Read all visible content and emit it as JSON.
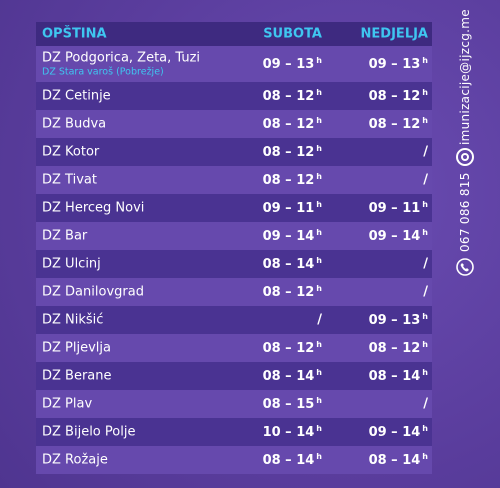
{
  "header": {
    "col_1": "OPŠTINA",
    "col_2": "SUBOTA",
    "col_3": "NEDJELJA"
  },
  "hour_suffix": "h",
  "rows": [
    {
      "name": "DZ Podgorica, Zeta, Tuzi",
      "note": "DZ Stara varoš (Pobrežje)",
      "saturday": "09 – 13",
      "sunday": "09 – 13"
    },
    {
      "name": "DZ Cetinje",
      "saturday": "08 – 12",
      "sunday": "08 – 12"
    },
    {
      "name": "DZ Budva",
      "saturday": "08 – 12",
      "sunday": "08 – 12"
    },
    {
      "name": "DZ Kotor",
      "saturday": "08 – 12",
      "sunday": "/"
    },
    {
      "name": "DZ Tivat",
      "saturday": "08 – 12",
      "sunday": "/"
    },
    {
      "name": "DZ Herceg Novi",
      "saturday": "09 – 11",
      "sunday": "09 – 11"
    },
    {
      "name": "DZ Bar",
      "saturday": "09 – 14",
      "sunday": "09 – 14"
    },
    {
      "name": "DZ Ulcinj",
      "saturday": "08 – 14",
      "sunday": "/"
    },
    {
      "name": "DZ Danilovgrad",
      "saturday": "08 – 12",
      "sunday": "/"
    },
    {
      "name": "DZ Nikšić",
      "saturday": "/",
      "sunday": "09 – 13"
    },
    {
      "name": "DZ Pljevlja",
      "saturday": "08 – 12",
      "sunday": "08 – 12"
    },
    {
      "name": "DZ Berane",
      "saturday": "08 – 14",
      "sunday": "08 – 14"
    },
    {
      "name": "DZ Plav",
      "saturday": "08 – 15",
      "sunday": "/"
    },
    {
      "name": "DZ Bijelo Polje",
      "saturday": "10 – 14",
      "sunday": "09 – 14"
    },
    {
      "name": "DZ Rožaje",
      "saturday": "08 – 14",
      "sunday": "08 – 14"
    }
  ],
  "contact": {
    "email": "imunizacije@ijzcg.me",
    "phone": "067 086 815"
  }
}
